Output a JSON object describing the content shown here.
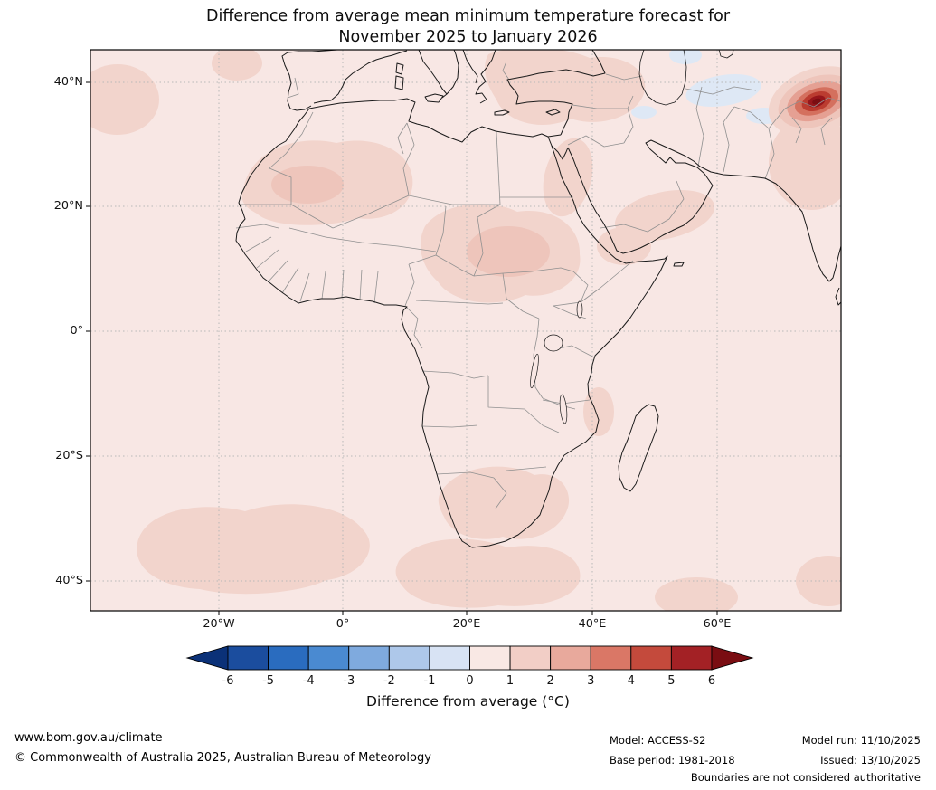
{
  "title": {
    "line1": "Difference from average mean minimum temperature forecast for",
    "line2": "November 2025 to January 2026"
  },
  "map": {
    "lat_ticks": [
      "40°N",
      "20°N",
      "0°",
      "20°S",
      "40°S"
    ],
    "lon_ticks": [
      "20°W",
      "0°",
      "20°E",
      "40°E",
      "60°E"
    ]
  },
  "colorbar": {
    "label": "Difference from average (°C)",
    "tick_labels": [
      "-6",
      "-5",
      "-4",
      "-3",
      "-2",
      "-1",
      "0",
      "1",
      "2",
      "3",
      "4",
      "5",
      "6"
    ],
    "segment_colors": [
      "#1b4d9e",
      "#2a6cbf",
      "#4a8ad1",
      "#7faade",
      "#aec8ea",
      "#d8e3f4",
      "#f9e8e4",
      "#f2cec6",
      "#e8a99c",
      "#da7766",
      "#c44a3c",
      "#a32125"
    ],
    "under_arrow_color": "#0b3178",
    "over_arrow_color": "#7a0d12"
  },
  "colors": {
    "base": "#f8e7e4",
    "patch1": "#f2d4cc",
    "patch2": "#eec5bb",
    "blue": "#dee8f5",
    "hot3": "#e5a093",
    "hot4": "#d4705e",
    "hot5": "#bb3c30",
    "hot6": "#96161b",
    "hot7": "#7a0d12",
    "coast": "#1a1a1a",
    "border": "#909090",
    "grid": "#b8b8b8",
    "lake": "#f8e7e4"
  },
  "footer": {
    "website": "www.bom.gov.au/climate",
    "copyright": "© Commonwealth of Australia 2025, Australian Bureau of Meteorology",
    "model_label": "Model: ACCESS-S2",
    "base_period_label": "Base period: 1981-2018",
    "model_run_label": "Model run: 11/10/2025",
    "issued_label": "Issued: 13/10/2025",
    "disclaimer": "Boundaries are not considered authoritative"
  },
  "chart_data": {
    "type": "heatmap",
    "title": "Difference from average mean minimum temperature forecast for November 2025 to January 2026",
    "variable": "Mean minimum temperature difference from average",
    "units": "°C",
    "region": "Africa, southern Europe, Middle East, Indian subcontinent and surrounding oceans",
    "x_ticks": [
      "20°W",
      "0°",
      "20°E",
      "40°E",
      "60°E"
    ],
    "y_ticks": [
      "40°N",
      "20°N",
      "0°",
      "20°S",
      "40°S"
    ],
    "colorbar_levels": [
      -6,
      -5,
      -4,
      -3,
      -2,
      -1,
      0,
      1,
      2,
      3,
      4,
      5,
      6
    ],
    "colorbar_label": "Difference from average (°C)",
    "field_summary": [
      {
        "area": "Most of Africa and surrounding oceans",
        "anomaly_c": "0 to +1"
      },
      {
        "area": "Central Sahara (Algeria, Mali, Libya)",
        "anomaly_c": "+1 to +2"
      },
      {
        "area": "Chad - Sudan - South Sudan belt",
        "anomaly_c": "+1 to +2"
      },
      {
        "area": "Eastern Mediterranean, Turkey and Middle East",
        "anomaly_c": "+1 to +2"
      },
      {
        "area": "Arabian Peninsula south",
        "anomaly_c": "+1 to +2"
      },
      {
        "area": "Southern Africa interior",
        "anomaly_c": "+1 to +2"
      },
      {
        "area": "South Atlantic and southern Indian Ocean patches",
        "anomaly_c": "+1 to +2"
      },
      {
        "area": "Northwest India / Pakistan",
        "anomaly_c": "+1 to +2"
      },
      {
        "area": "Karakoram / western Himalaya hotspot (~75E, 36N)",
        "anomaly_c": "+3 to more than +6"
      },
      {
        "area": "Iran / Central Asia patches",
        "anomaly_c": "-1 to 0"
      }
    ]
  }
}
